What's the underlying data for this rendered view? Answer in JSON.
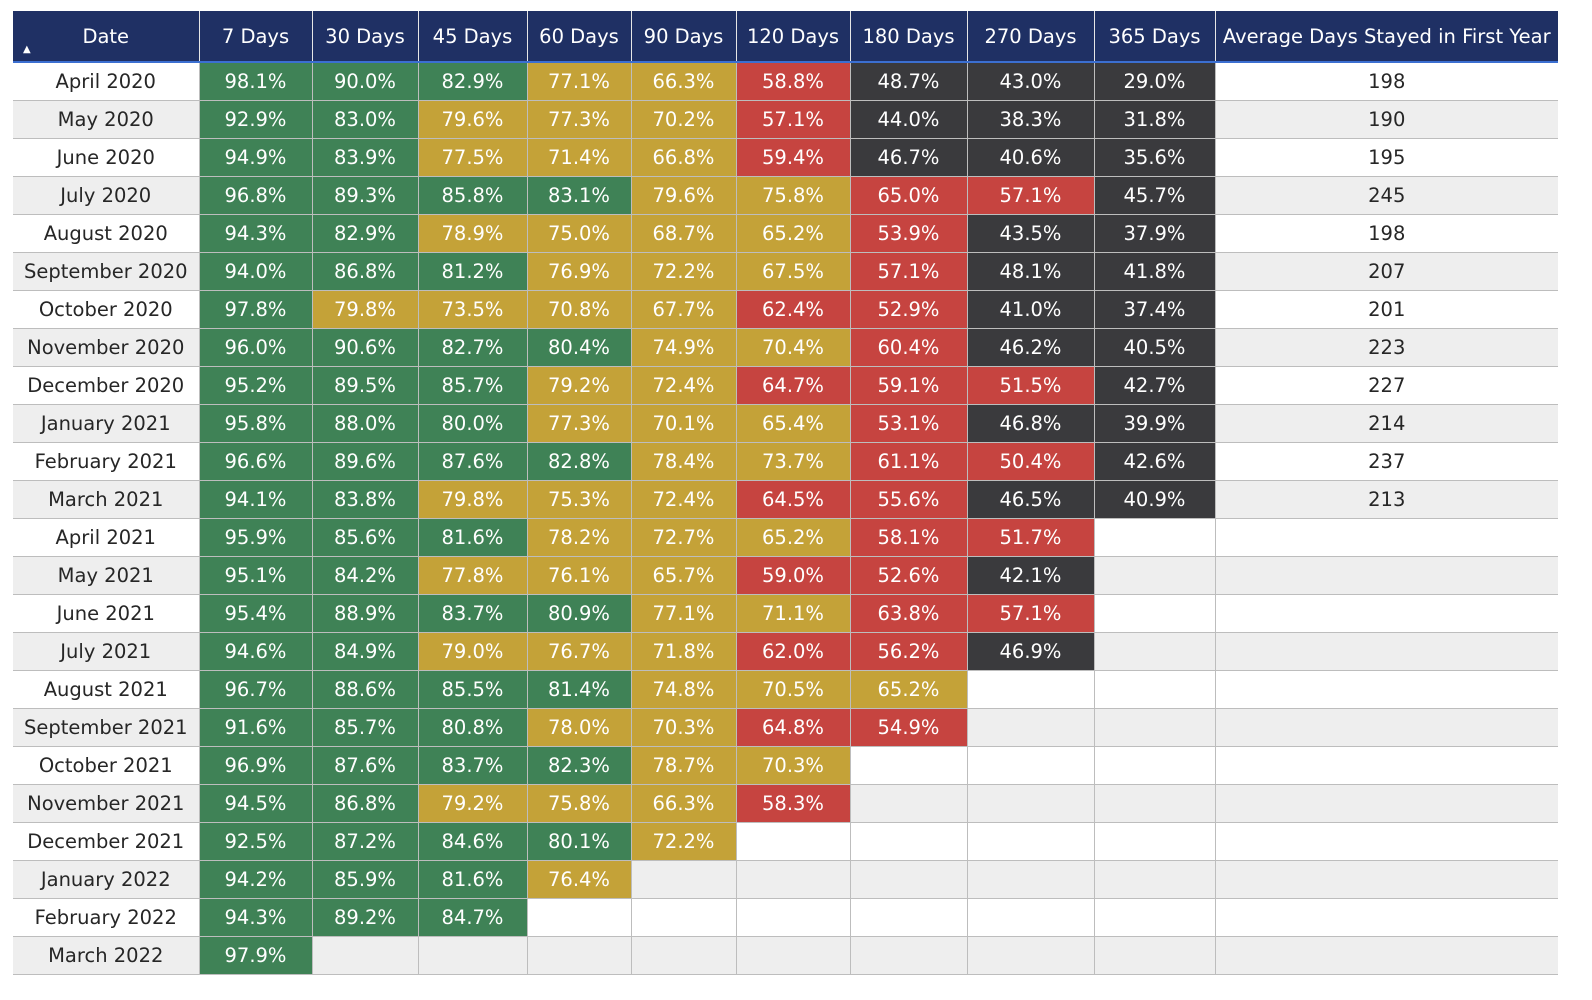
{
  "table": {
    "columns": [
      "Date",
      "7 Days",
      "30 Days",
      "45 Days",
      "60 Days",
      "90 Days",
      "120 Days",
      "180 Days",
      "270 Days",
      "365 Days",
      "Average Days Stayed in First Year"
    ],
    "sort_icon": "sort-ascending-triangle-icon",
    "sort_symbol": "▲",
    "colors": {
      "green": "#3f8256",
      "yellow": "#c4a238",
      "red": "#c64440",
      "dark": "#3a3a3d",
      "header": "#1f3064"
    },
    "rows": [
      {
        "date": "April 2020",
        "values": [
          "98.1%",
          "90.0%",
          "82.9%",
          "77.1%",
          "66.3%",
          "58.8%",
          "48.7%",
          "43.0%",
          "29.0%"
        ],
        "colors": [
          "g",
          "g",
          "g",
          "y",
          "y",
          "r",
          "k",
          "k",
          "k"
        ],
        "avg": "198"
      },
      {
        "date": "May 2020",
        "values": [
          "92.9%",
          "83.0%",
          "79.6%",
          "77.3%",
          "70.2%",
          "57.1%",
          "44.0%",
          "38.3%",
          "31.8%"
        ],
        "colors": [
          "g",
          "g",
          "y",
          "y",
          "y",
          "r",
          "k",
          "k",
          "k"
        ],
        "avg": "190"
      },
      {
        "date": "June 2020",
        "values": [
          "94.9%",
          "83.9%",
          "77.5%",
          "71.4%",
          "66.8%",
          "59.4%",
          "46.7%",
          "40.6%",
          "35.6%"
        ],
        "colors": [
          "g",
          "g",
          "y",
          "y",
          "y",
          "r",
          "k",
          "k",
          "k"
        ],
        "avg": "195"
      },
      {
        "date": "July 2020",
        "values": [
          "96.8%",
          "89.3%",
          "85.8%",
          "83.1%",
          "79.6%",
          "75.8%",
          "65.0%",
          "57.1%",
          "45.7%"
        ],
        "colors": [
          "g",
          "g",
          "g",
          "g",
          "y",
          "y",
          "r",
          "r",
          "k"
        ],
        "avg": "245"
      },
      {
        "date": "August 2020",
        "values": [
          "94.3%",
          "82.9%",
          "78.9%",
          "75.0%",
          "68.7%",
          "65.2%",
          "53.9%",
          "43.5%",
          "37.9%"
        ],
        "colors": [
          "g",
          "g",
          "y",
          "y",
          "y",
          "y",
          "r",
          "k",
          "k"
        ],
        "avg": "198"
      },
      {
        "date": "September 2020",
        "values": [
          "94.0%",
          "86.8%",
          "81.2%",
          "76.9%",
          "72.2%",
          "67.5%",
          "57.1%",
          "48.1%",
          "41.8%"
        ],
        "colors": [
          "g",
          "g",
          "g",
          "y",
          "y",
          "y",
          "r",
          "k",
          "k"
        ],
        "avg": "207"
      },
      {
        "date": "October 2020",
        "values": [
          "97.8%",
          "79.8%",
          "73.5%",
          "70.8%",
          "67.7%",
          "62.4%",
          "52.9%",
          "41.0%",
          "37.4%"
        ],
        "colors": [
          "g",
          "y",
          "y",
          "y",
          "y",
          "r",
          "r",
          "k",
          "k"
        ],
        "avg": "201"
      },
      {
        "date": "November 2020",
        "values": [
          "96.0%",
          "90.6%",
          "82.7%",
          "80.4%",
          "74.9%",
          "70.4%",
          "60.4%",
          "46.2%",
          "40.5%"
        ],
        "colors": [
          "g",
          "g",
          "g",
          "g",
          "y",
          "y",
          "r",
          "k",
          "k"
        ],
        "avg": "223"
      },
      {
        "date": "December 2020",
        "values": [
          "95.2%",
          "89.5%",
          "85.7%",
          "79.2%",
          "72.4%",
          "64.7%",
          "59.1%",
          "51.5%",
          "42.7%"
        ],
        "colors": [
          "g",
          "g",
          "g",
          "y",
          "y",
          "r",
          "r",
          "r",
          "k"
        ],
        "avg": "227"
      },
      {
        "date": "January 2021",
        "values": [
          "95.8%",
          "88.0%",
          "80.0%",
          "77.3%",
          "70.1%",
          "65.4%",
          "53.1%",
          "46.8%",
          "39.9%"
        ],
        "colors": [
          "g",
          "g",
          "g",
          "y",
          "y",
          "y",
          "r",
          "k",
          "k"
        ],
        "avg": "214"
      },
      {
        "date": "February 2021",
        "values": [
          "96.6%",
          "89.6%",
          "87.6%",
          "82.8%",
          "78.4%",
          "73.7%",
          "61.1%",
          "50.4%",
          "42.6%"
        ],
        "colors": [
          "g",
          "g",
          "g",
          "g",
          "y",
          "y",
          "r",
          "r",
          "k"
        ],
        "avg": "237"
      },
      {
        "date": "March 2021",
        "values": [
          "94.1%",
          "83.8%",
          "79.8%",
          "75.3%",
          "72.4%",
          "64.5%",
          "55.6%",
          "46.5%",
          "40.9%"
        ],
        "colors": [
          "g",
          "g",
          "y",
          "y",
          "y",
          "r",
          "r",
          "k",
          "k"
        ],
        "avg": "213"
      },
      {
        "date": "April 2021",
        "values": [
          "95.9%",
          "85.6%",
          "81.6%",
          "78.2%",
          "72.7%",
          "65.2%",
          "58.1%",
          "51.7%",
          ""
        ],
        "colors": [
          "g",
          "g",
          "g",
          "y",
          "y",
          "y",
          "r",
          "r",
          ""
        ],
        "avg": ""
      },
      {
        "date": "May 2021",
        "values": [
          "95.1%",
          "84.2%",
          "77.8%",
          "76.1%",
          "65.7%",
          "59.0%",
          "52.6%",
          "42.1%",
          ""
        ],
        "colors": [
          "g",
          "g",
          "y",
          "y",
          "y",
          "r",
          "r",
          "k",
          ""
        ],
        "avg": ""
      },
      {
        "date": "June 2021",
        "values": [
          "95.4%",
          "88.9%",
          "83.7%",
          "80.9%",
          "77.1%",
          "71.1%",
          "63.8%",
          "57.1%",
          ""
        ],
        "colors": [
          "g",
          "g",
          "g",
          "g",
          "y",
          "y",
          "r",
          "r",
          ""
        ],
        "avg": ""
      },
      {
        "date": "July 2021",
        "values": [
          "94.6%",
          "84.9%",
          "79.0%",
          "76.7%",
          "71.8%",
          "62.0%",
          "56.2%",
          "46.9%",
          ""
        ],
        "colors": [
          "g",
          "g",
          "y",
          "y",
          "y",
          "r",
          "r",
          "k",
          ""
        ],
        "avg": ""
      },
      {
        "date": "August 2021",
        "values": [
          "96.7%",
          "88.6%",
          "85.5%",
          "81.4%",
          "74.8%",
          "70.5%",
          "65.2%",
          "",
          ""
        ],
        "colors": [
          "g",
          "g",
          "g",
          "g",
          "y",
          "y",
          "y",
          "",
          ""
        ],
        "avg": ""
      },
      {
        "date": "September 2021",
        "values": [
          "91.6%",
          "85.7%",
          "80.8%",
          "78.0%",
          "70.3%",
          "64.8%",
          "54.9%",
          "",
          ""
        ],
        "colors": [
          "g",
          "g",
          "g",
          "y",
          "y",
          "r",
          "r",
          "",
          ""
        ],
        "avg": ""
      },
      {
        "date": "October 2021",
        "values": [
          "96.9%",
          "87.6%",
          "83.7%",
          "82.3%",
          "78.7%",
          "70.3%",
          "",
          "",
          ""
        ],
        "colors": [
          "g",
          "g",
          "g",
          "g",
          "y",
          "y",
          "",
          "",
          ""
        ],
        "avg": ""
      },
      {
        "date": "November 2021",
        "values": [
          "94.5%",
          "86.8%",
          "79.2%",
          "75.8%",
          "66.3%",
          "58.3%",
          "",
          "",
          ""
        ],
        "colors": [
          "g",
          "g",
          "y",
          "y",
          "y",
          "r",
          "",
          "",
          ""
        ],
        "avg": ""
      },
      {
        "date": "December 2021",
        "values": [
          "92.5%",
          "87.2%",
          "84.6%",
          "80.1%",
          "72.2%",
          "",
          "",
          "",
          ""
        ],
        "colors": [
          "g",
          "g",
          "g",
          "g",
          "y",
          "",
          "",
          "",
          ""
        ],
        "avg": ""
      },
      {
        "date": "January 2022",
        "values": [
          "94.2%",
          "85.9%",
          "81.6%",
          "76.4%",
          "",
          "",
          "",
          "",
          ""
        ],
        "colors": [
          "g",
          "g",
          "g",
          "y",
          "",
          "",
          "",
          "",
          ""
        ],
        "avg": ""
      },
      {
        "date": "February 2022",
        "values": [
          "94.3%",
          "89.2%",
          "84.7%",
          "",
          "",
          "",
          "",
          "",
          ""
        ],
        "colors": [
          "g",
          "g",
          "g",
          "",
          "",
          "",
          "",
          "",
          ""
        ],
        "avg": ""
      },
      {
        "date": "March 2022",
        "values": [
          "97.9%",
          "",
          "",
          "",
          "",
          "",
          "",
          "",
          ""
        ],
        "colors": [
          "g",
          "",
          "",
          "",
          "",
          "",
          "",
          "",
          ""
        ],
        "avg": ""
      }
    ]
  }
}
